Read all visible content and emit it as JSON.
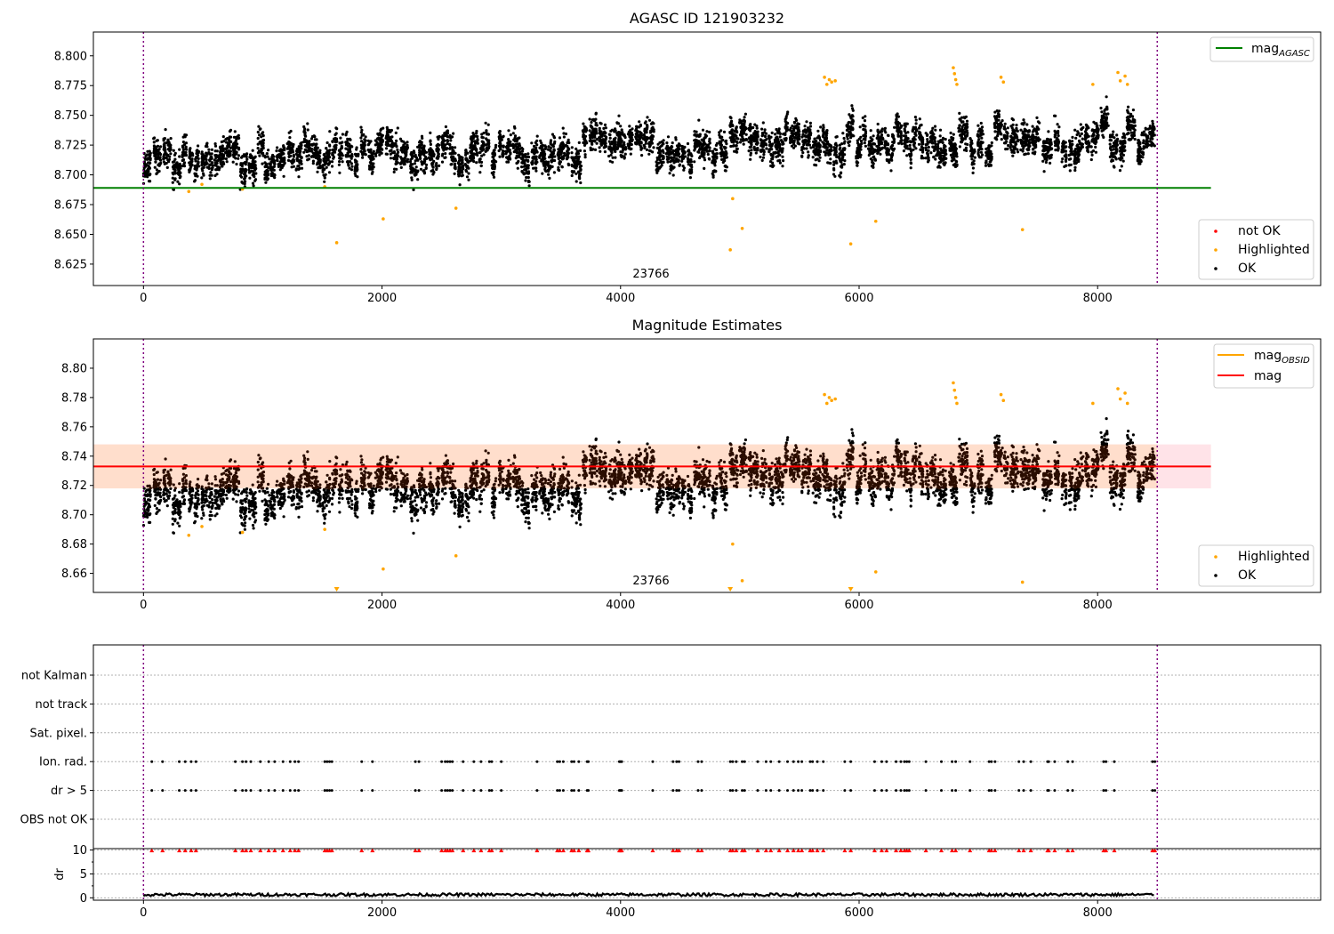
{
  "chart_data": [
    {
      "type": "scatter",
      "title": "AGASC ID 121903232",
      "xlim": [
        -420,
        9870
      ],
      "ylim": [
        8.607,
        8.82
      ],
      "x_ticks": [
        0,
        2000,
        4000,
        6000,
        8000
      ],
      "y_ticks": [
        8.625,
        8.65,
        8.675,
        8.7,
        8.725,
        8.75,
        8.775,
        8.8
      ],
      "y_tick_labels": [
        "8.625",
        "8.650",
        "8.675",
        "8.700",
        "8.725",
        "8.750",
        "8.775",
        "8.800"
      ],
      "vlines": [
        0,
        8500
      ],
      "annotation": {
        "text": "23766",
        "x": 4250,
        "y": 8.613
      },
      "lines": [
        {
          "name": "mag_AGASC",
          "label_main": "mag",
          "label_sub": "AGASC",
          "y": 8.689,
          "x_range": [
            -420,
            8950
          ],
          "color": "#008000"
        }
      ],
      "series": [
        {
          "name": "not OK",
          "color": "#ff0000",
          "points": []
        },
        {
          "name": "Highlighted",
          "color": "#ffa500",
          "points": [
            [
              380,
              8.686
            ],
            [
              490,
              8.692
            ],
            [
              830,
              8.688
            ],
            [
              1520,
              8.69
            ],
            [
              1620,
              8.643
            ],
            [
              2010,
              8.663
            ],
            [
              2620,
              8.672
            ],
            [
              4920,
              8.637
            ],
            [
              4940,
              8.68
            ],
            [
              5020,
              8.655
            ],
            [
              5930,
              8.642
            ],
            [
              6140,
              8.661
            ],
            [
              7370,
              8.654
            ],
            [
              5710,
              8.782
            ],
            [
              5730,
              8.776
            ],
            [
              5750,
              8.78
            ],
            [
              5770,
              8.778
            ],
            [
              5800,
              8.779
            ],
            [
              6790,
              8.79
            ],
            [
              6800,
              8.785
            ],
            [
              6810,
              8.78
            ],
            [
              6820,
              8.776
            ],
            [
              7190,
              8.782
            ],
            [
              7210,
              8.778
            ],
            [
              7960,
              8.776
            ],
            [
              8170,
              8.786
            ],
            [
              8190,
              8.779
            ],
            [
              8230,
              8.783
            ],
            [
              8250,
              8.776
            ]
          ]
        },
        {
          "name": "OK",
          "color": "#000000",
          "points": []
        }
      ],
      "legends": [
        {
          "position": "upper-right",
          "entries": [
            "mag_AGASC"
          ]
        },
        {
          "position": "lower-right",
          "entries": [
            "not OK",
            "Highlighted",
            "OK"
          ]
        }
      ]
    },
    {
      "type": "scatter",
      "title": "Magnitude Estimates",
      "xlim": [
        -420,
        9870
      ],
      "ylim": [
        8.647,
        8.82
      ],
      "x_ticks": [
        0,
        2000,
        4000,
        6000,
        8000
      ],
      "y_ticks": [
        8.66,
        8.68,
        8.7,
        8.72,
        8.74,
        8.76,
        8.78,
        8.8
      ],
      "y_tick_labels": [
        "8.66",
        "8.68",
        "8.70",
        "8.72",
        "8.74",
        "8.76",
        "8.78",
        "8.80"
      ],
      "vlines": [
        0,
        8500
      ],
      "annotation": {
        "text": "23766",
        "x": 4250,
        "y": 8.653
      },
      "bands": [
        {
          "ylo": 8.718,
          "yhi": 8.748,
          "x_range": [
            -420,
            8950
          ],
          "color": "#ffc0cb"
        },
        {
          "ylo": 8.718,
          "yhi": 8.748,
          "x_range": [
            -420,
            8500
          ],
          "color": "#ffdab9"
        }
      ],
      "lines": [
        {
          "name": "mag",
          "label_main": "mag",
          "label_sub": "",
          "y": 8.733,
          "x_range": [
            -420,
            8950
          ],
          "color": "#ff0000"
        },
        {
          "name": "mag_OBSID",
          "label_main": "mag",
          "label_sub": "OBSID",
          "color": "#ffa500"
        }
      ],
      "series": [
        {
          "name": "Highlighted",
          "color": "#ffa500",
          "points": [
            [
              380,
              8.686
            ],
            [
              490,
              8.692
            ],
            [
              830,
              8.688
            ],
            [
              1520,
              8.69
            ],
            [
              2010,
              8.663
            ],
            [
              2620,
              8.672
            ],
            [
              4940,
              8.68
            ],
            [
              5020,
              8.655
            ],
            [
              6140,
              8.661
            ],
            [
              7370,
              8.654
            ],
            [
              5710,
              8.782
            ],
            [
              5730,
              8.776
            ],
            [
              5750,
              8.78
            ],
            [
              5770,
              8.778
            ],
            [
              5800,
              8.779
            ],
            [
              6790,
              8.79
            ],
            [
              6800,
              8.785
            ],
            [
              6810,
              8.78
            ],
            [
              6820,
              8.776
            ],
            [
              7190,
              8.782
            ],
            [
              7210,
              8.778
            ],
            [
              7960,
              8.776
            ],
            [
              8170,
              8.786
            ],
            [
              8190,
              8.779
            ],
            [
              8230,
              8.783
            ],
            [
              8250,
              8.776
            ]
          ]
        },
        {
          "name": "OK",
          "color": "#000000",
          "points": []
        }
      ],
      "out_of_range_markers": [
        1620,
        4920,
        5930
      ],
      "legends": [
        {
          "position": "upper-right",
          "entries": [
            "mag_OBSID",
            "mag"
          ]
        },
        {
          "position": "lower-right",
          "entries": [
            "Highlighted",
            "OK"
          ]
        }
      ]
    },
    {
      "type": "scatter",
      "xlim": [
        -420,
        9870
      ],
      "categories": [
        "OBS not OK",
        "dr > 5",
        "Ion. rad.",
        "Sat. pixel.",
        "not track",
        "not Kalman"
      ],
      "vlines": [
        0,
        8500
      ],
      "flag_x": [
        70,
        160,
        300,
        350,
        400,
        440,
        770,
        830,
        860,
        900,
        980,
        1050,
        1100,
        1170,
        1230,
        1270,
        1300,
        1520,
        1540,
        1560,
        1580,
        1830,
        1920,
        2280,
        2310,
        2500,
        2530,
        2550,
        2570,
        2590,
        2680,
        2770,
        2830,
        2900,
        2920,
        3000,
        3300,
        3470,
        3490,
        3520,
        3590,
        3610,
        3650,
        3720,
        3730,
        3990,
        4000,
        4010,
        4270,
        4440,
        4470,
        4490,
        4650,
        4680,
        4920,
        4940,
        4970,
        5020,
        5040,
        5150,
        5220,
        5260,
        5330,
        5400,
        5450,
        5490,
        5520,
        5590,
        5610,
        5650,
        5700,
        5880,
        5930,
        6130,
        6190,
        6230,
        6310,
        6350,
        6380,
        6400,
        6420,
        6560,
        6690,
        6780,
        6810,
        6930,
        7090,
        7110,
        7140,
        7340,
        7380,
        7440,
        7580,
        7590,
        7640,
        7750,
        7790,
        8050,
        8070,
        8140,
        8460,
        8480
      ],
      "flag_rows": [
        "Ion. rad.",
        "dr > 5"
      ]
    },
    {
      "type": "scatter",
      "ylabel": "dr",
      "xlim": [
        -420,
        9870
      ],
      "ylim": [
        -0.5,
        10.3
      ],
      "x_ticks": [
        0,
        2000,
        4000,
        6000,
        8000
      ],
      "x_tick_labels": [
        "0",
        "2000",
        "4000",
        "6000",
        "8000"
      ],
      "y_ticks": [
        0,
        5,
        10
      ],
      "y_tick_labels": [
        "0",
        "5",
        "10"
      ],
      "vlines": [
        0,
        8500
      ],
      "clipped_marker_value": 10,
      "marker_color": "#ff0000"
    }
  ]
}
